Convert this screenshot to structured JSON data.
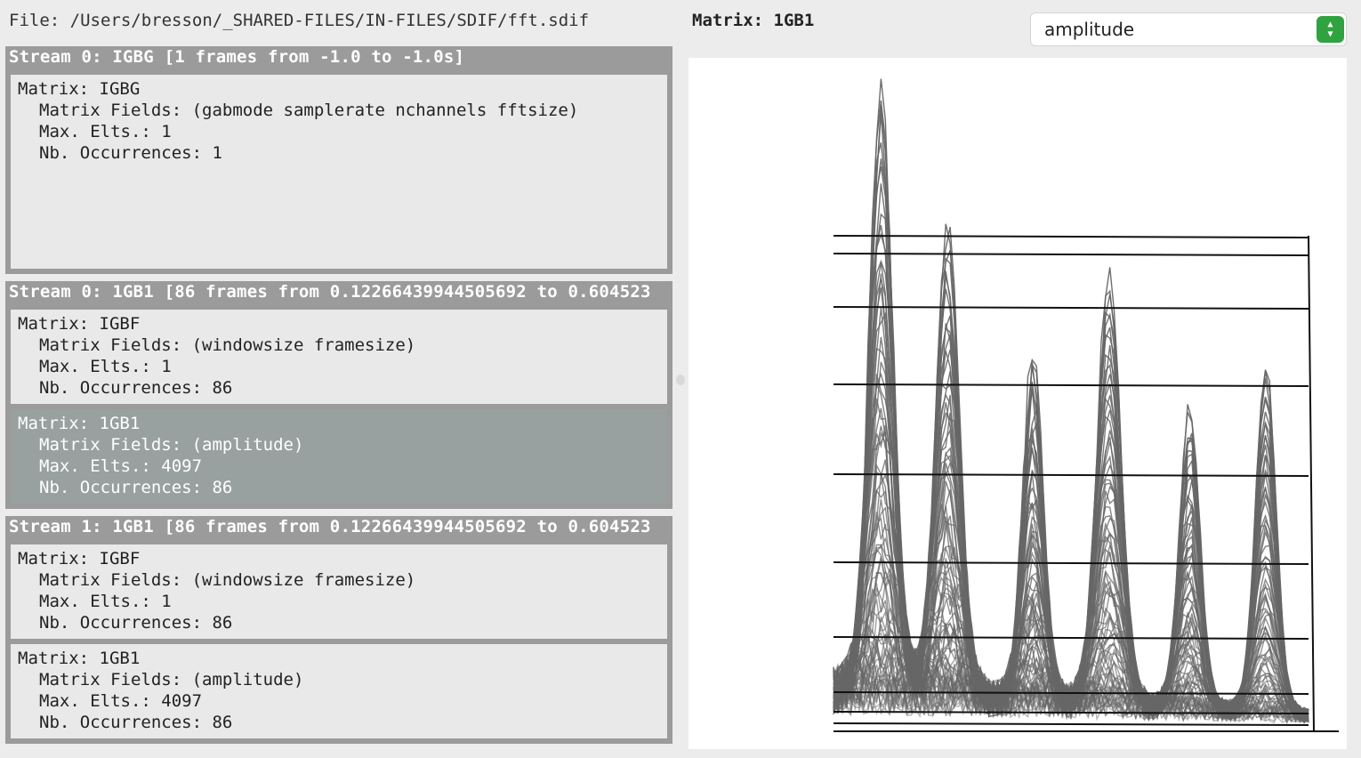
{
  "file": {
    "path_label": "File: /Users/bresson/_SHARED-FILES/IN-FILES/SDIF/fft.sdif"
  },
  "streams": [
    {
      "header": "Stream 0: IGBG [1 frames from -1.0 to -1.0s]",
      "matrices": [
        {
          "title": "Matrix: IGBG",
          "fields": "Matrix Fields: (gabmode samplerate nchannels fftsize)",
          "max_elts": "Max. Elts.: 1",
          "occurrences": "Nb. Occurrences: 1"
        }
      ]
    },
    {
      "header": "Stream 0: 1GB1 [86 frames from 0.12266439944505692 to 0.604523",
      "matrices": [
        {
          "title": "Matrix: IGBF",
          "fields": "Matrix Fields: (windowsize framesize)",
          "max_elts": "Max. Elts.: 1",
          "occurrences": "Nb. Occurrences: 86"
        },
        {
          "title": "Matrix: 1GB1",
          "fields": "Matrix Fields: (amplitude)",
          "max_elts": "Max. Elts.: 4097",
          "occurrences": "Nb. Occurrences: 86",
          "selected": true
        }
      ]
    },
    {
      "header": "Stream 1: 1GB1 [86 frames from 0.12266439944505692 to 0.604523",
      "matrices": [
        {
          "title": "Matrix: IGBF",
          "fields": "Matrix Fields: (windowsize framesize)",
          "max_elts": "Max. Elts.: 1",
          "occurrences": "Nb. Occurrences: 86"
        },
        {
          "title": "Matrix: 1GB1",
          "fields": "Matrix Fields: (amplitude)",
          "max_elts": "Max. Elts.: 4097",
          "occurrences": "Nb. Occurrences: 86"
        }
      ]
    }
  ],
  "viewer": {
    "title": "Matrix: 1GB1",
    "field_select": {
      "value": "amplitude"
    }
  },
  "colors": {
    "stream_bg": "#9b9b9b",
    "matrix_bg": "#e9e9e9",
    "matrix_selected_bg": "#98a0a0",
    "select_accent": "#2fa33f",
    "plot_line": "#666666",
    "plot_axis": "#111111"
  },
  "icons": {
    "select_arrows": "up-down-chevron-icon"
  }
}
